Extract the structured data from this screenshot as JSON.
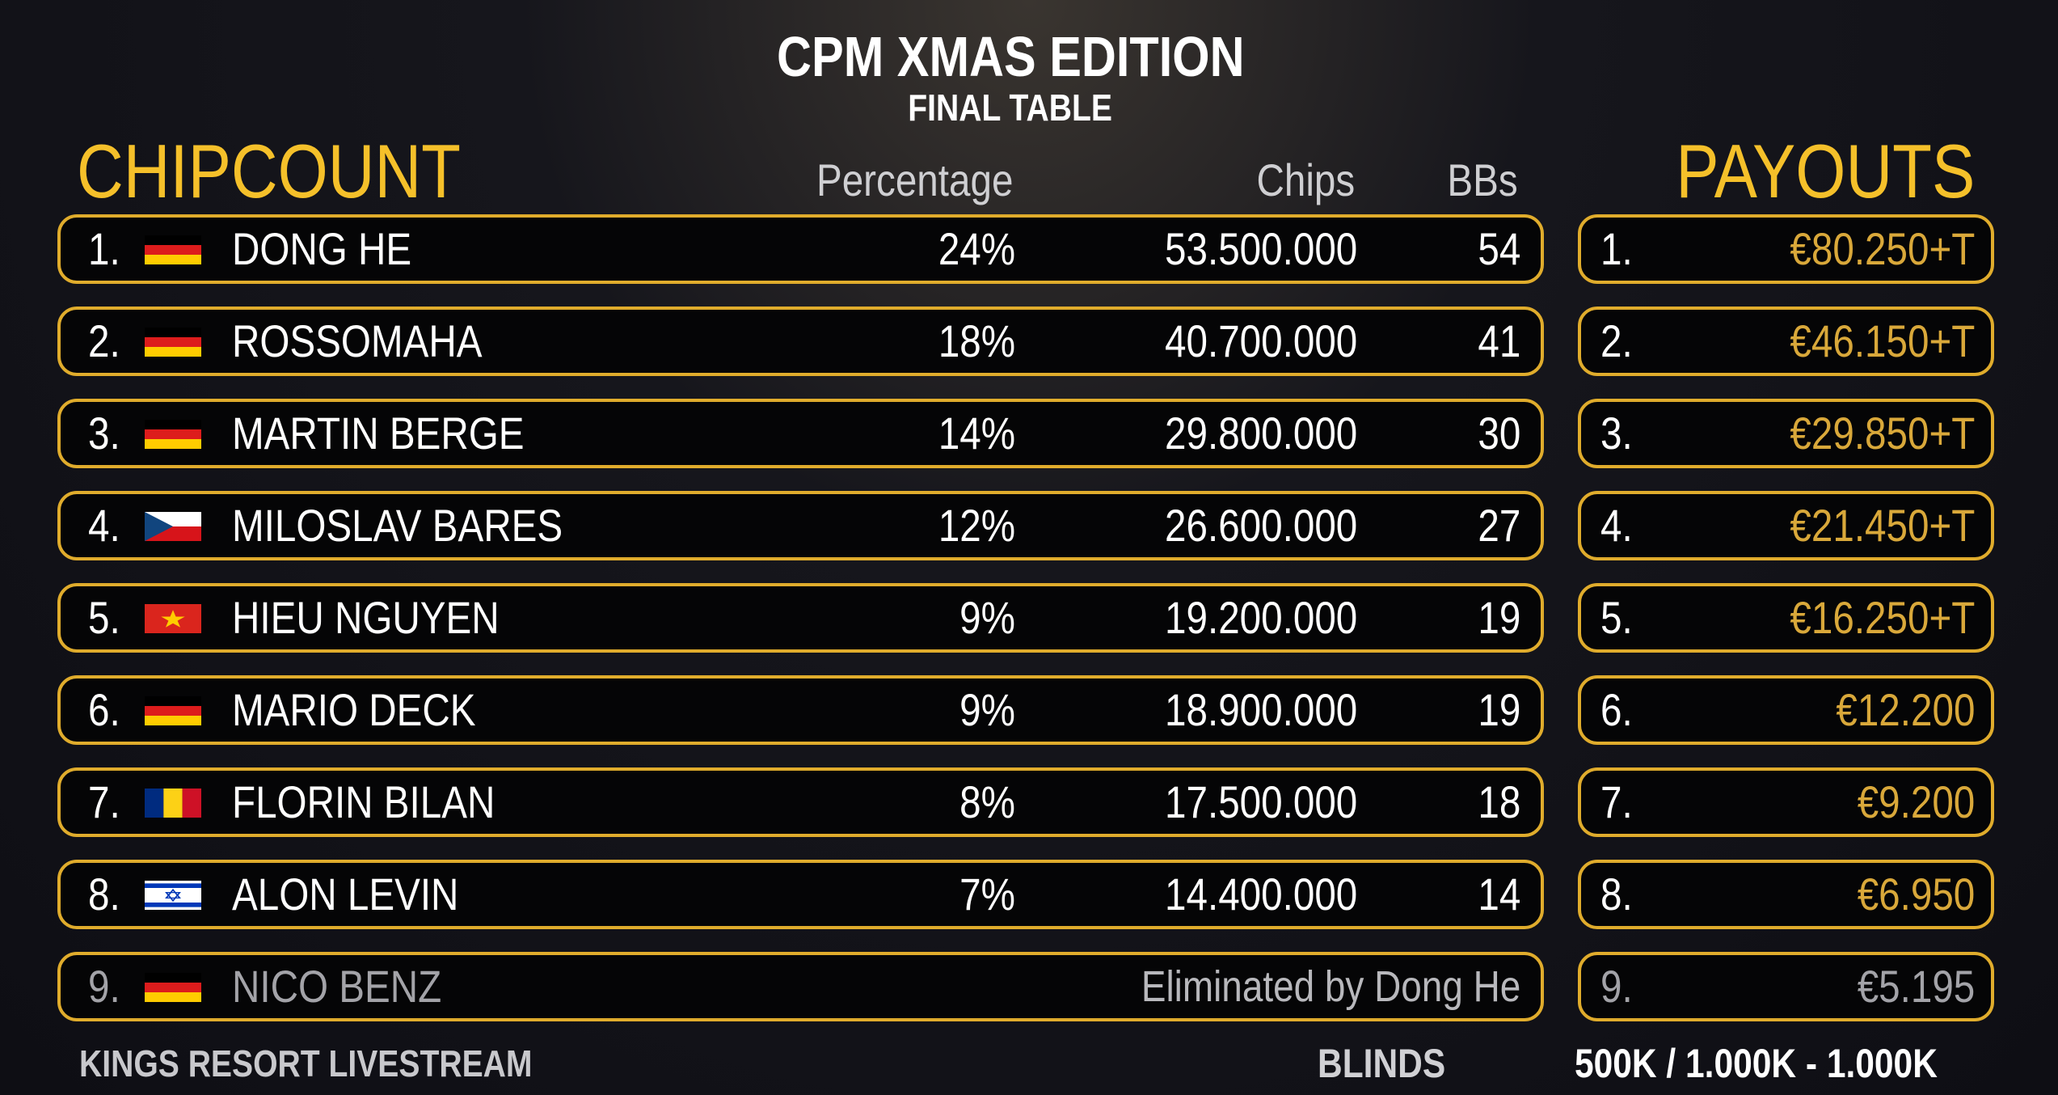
{
  "header": {
    "title": "CPM XMAS EDITION",
    "subtitle": "FINAL TABLE"
  },
  "chipcount": {
    "heading": "CHIPCOUNT",
    "columns": {
      "percentage": "Percentage",
      "chips": "Chips",
      "bbs": "BBs"
    },
    "players": [
      {
        "rank": "1.",
        "flag": "germany",
        "name": "DONG HE",
        "percentage": "24%",
        "chips": "53.500.000",
        "bbs": "54"
      },
      {
        "rank": "2.",
        "flag": "germany",
        "name": "ROSSOMAHA",
        "percentage": "18%",
        "chips": "40.700.000",
        "bbs": "41"
      },
      {
        "rank": "3.",
        "flag": "germany",
        "name": "MARTIN BERGE",
        "percentage": "14%",
        "chips": "29.800.000",
        "bbs": "30"
      },
      {
        "rank": "4.",
        "flag": "czech",
        "name": "MILOSLAV BARES",
        "percentage": "12%",
        "chips": "26.600.000",
        "bbs": "27"
      },
      {
        "rank": "5.",
        "flag": "vietnam",
        "name": "HIEU NGUYEN",
        "percentage": "9%",
        "chips": "19.200.000",
        "bbs": "19"
      },
      {
        "rank": "6.",
        "flag": "germany",
        "name": "MARIO DECK",
        "percentage": "9%",
        "chips": "18.900.000",
        "bbs": "19"
      },
      {
        "rank": "7.",
        "flag": "romania",
        "name": "FLORIN BILAN",
        "percentage": "8%",
        "chips": "17.500.000",
        "bbs": "18"
      },
      {
        "rank": "8.",
        "flag": "israel",
        "name": "ALON LEVIN",
        "percentage": "7%",
        "chips": "14.400.000",
        "bbs": "14"
      }
    ],
    "eliminated": {
      "rank": "9.",
      "flag": "germany",
      "name": "NICO BENZ",
      "note": "Eliminated by Dong He"
    }
  },
  "payouts": {
    "heading": "PAYOUTS",
    "items": [
      {
        "rank": "1.",
        "amount": "€80.250+T"
      },
      {
        "rank": "2.",
        "amount": "€46.150+T"
      },
      {
        "rank": "3.",
        "amount": "€29.850+T"
      },
      {
        "rank": "4.",
        "amount": "€21.450+T"
      },
      {
        "rank": "5.",
        "amount": "€16.250+T"
      },
      {
        "rank": "6.",
        "amount": "€12.200"
      },
      {
        "rank": "7.",
        "amount": "€9.200"
      },
      {
        "rank": "8.",
        "amount": "€6.950"
      },
      {
        "rank": "9.",
        "amount": "€5.195"
      }
    ]
  },
  "footer": {
    "stream": "KINGS RESORT LIVESTREAM",
    "blinds_label": "BLINDS",
    "blinds_value": "500K / 1.000K - 1.000K"
  },
  "colors": {
    "gold": "#f5c02a",
    "border": "#e0ac2c",
    "payout": "#d9a83a"
  }
}
